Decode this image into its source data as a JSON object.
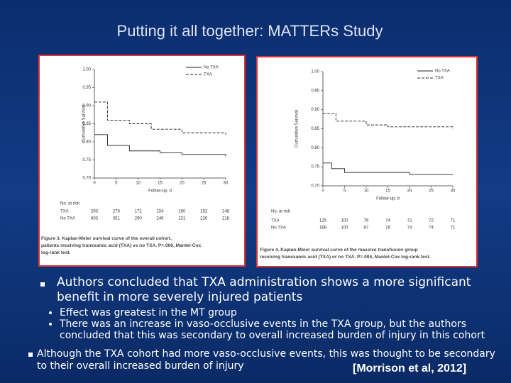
{
  "title": "Putting it all together: MATTERs Study",
  "figures": [
    {
      "ylabel": "Cumulative Survival",
      "xlabel": "Follow-up, d",
      "ylim": [
        0.7,
        1.0
      ],
      "xlim": [
        0,
        30
      ],
      "yticks": [
        {
          "value": 1.0,
          "label": "1.00"
        },
        {
          "value": 0.95,
          "label": "0.95"
        },
        {
          "value": 0.9,
          "label": "0.90"
        },
        {
          "value": 0.85,
          "label": "0.85"
        },
        {
          "value": 0.8,
          "label": "0.80"
        },
        {
          "value": 0.75,
          "label": "0.75"
        },
        {
          "value": 0.7,
          "label": "0.70"
        }
      ],
      "xticks": [
        0,
        5,
        10,
        15,
        20,
        25,
        30
      ],
      "series": [
        {
          "name": "No TXA",
          "x": [
            0,
            3,
            8,
            15,
            20,
            30
          ],
          "values": [
            0.82,
            0.79,
            0.775,
            0.77,
            0.765,
            0.76
          ]
        },
        {
          "name": "TXA",
          "x": [
            0,
            3,
            8,
            13,
            20,
            30
          ],
          "values": [
            0.91,
            0.86,
            0.85,
            0.835,
            0.825,
            0.82
          ]
        }
      ],
      "at_risk_title": "No. at risk",
      "at_risk": [
        {
          "name": "TXA",
          "values": [
            293,
            278,
            172,
            154,
            150,
            152,
            148
          ]
        },
        {
          "name": "No TXA",
          "values": [
            603,
            351,
            290,
            246,
            231,
            226,
            218
          ]
        }
      ],
      "caption": [
        "Figure 3. Kaplan-Meier survival curve of the overall cohort,",
        "patients receiving tranexamic acid (TXA) vs no TXA. P=.006, Mantel-Cox",
        "log-rank test."
      ]
    },
    {
      "ylabel": "Cumulative Survival",
      "xlabel": "Follow-up, d",
      "ylim": [
        0.7,
        1.0
      ],
      "xlim": [
        0,
        30
      ],
      "yticks": [
        {
          "value": 1.0,
          "label": "1.00"
        },
        {
          "value": 0.95,
          "label": "0.95"
        },
        {
          "value": 0.9,
          "label": "0.90"
        },
        {
          "value": 0.85,
          "label": "0.85"
        },
        {
          "value": 0.8,
          "label": "0.80"
        },
        {
          "value": 0.75,
          "label": "0.75"
        },
        {
          "value": 0.7,
          "label": "0.70"
        }
      ],
      "xticks": [
        0,
        5,
        10,
        15,
        20,
        25,
        30
      ],
      "series": [
        {
          "name": "No TXA",
          "x": [
            0,
            2,
            5,
            20,
            30
          ],
          "values": [
            0.76,
            0.745,
            0.735,
            0.73,
            0.73
          ]
        },
        {
          "name": "TXA",
          "x": [
            0,
            3,
            10,
            15,
            30
          ],
          "values": [
            0.89,
            0.87,
            0.86,
            0.855,
            0.85
          ]
        }
      ],
      "at_risk_title": "No. at risk",
      "at_risk": [
        {
          "name": "TXA",
          "values": [
            125,
            100,
            76,
            74,
            72,
            72,
            71
          ]
        },
        {
          "name": "No TXA",
          "values": [
            168,
            100,
            87,
            78,
            74,
            74,
            71
          ]
        }
      ],
      "caption": [
        "Figure 4. Kaplan-Meier survival curve of the massive transfusion group",
        "receiving tranexamic acid (TXA) or no TXA. P=.004, Mantel-Cox log-rank test."
      ]
    }
  ],
  "bullets": [
    {
      "text": "Authors concluded that TXA administration shows a more significant benefit in more severely injured patients",
      "sub": [
        "Effect was greatest in the MT group",
        "There was an increase in vaso-occlusive events in the TXA group, but the authors concluded that this was secondary to overall increased burden of injury in this cohort"
      ]
    },
    {
      "text": "Although the TXA cohort had more vaso-occlusive events, this was thought to be secondary to their overall increased burden of injury"
    }
  ],
  "citation": "[Morrison et al, 2012]"
}
